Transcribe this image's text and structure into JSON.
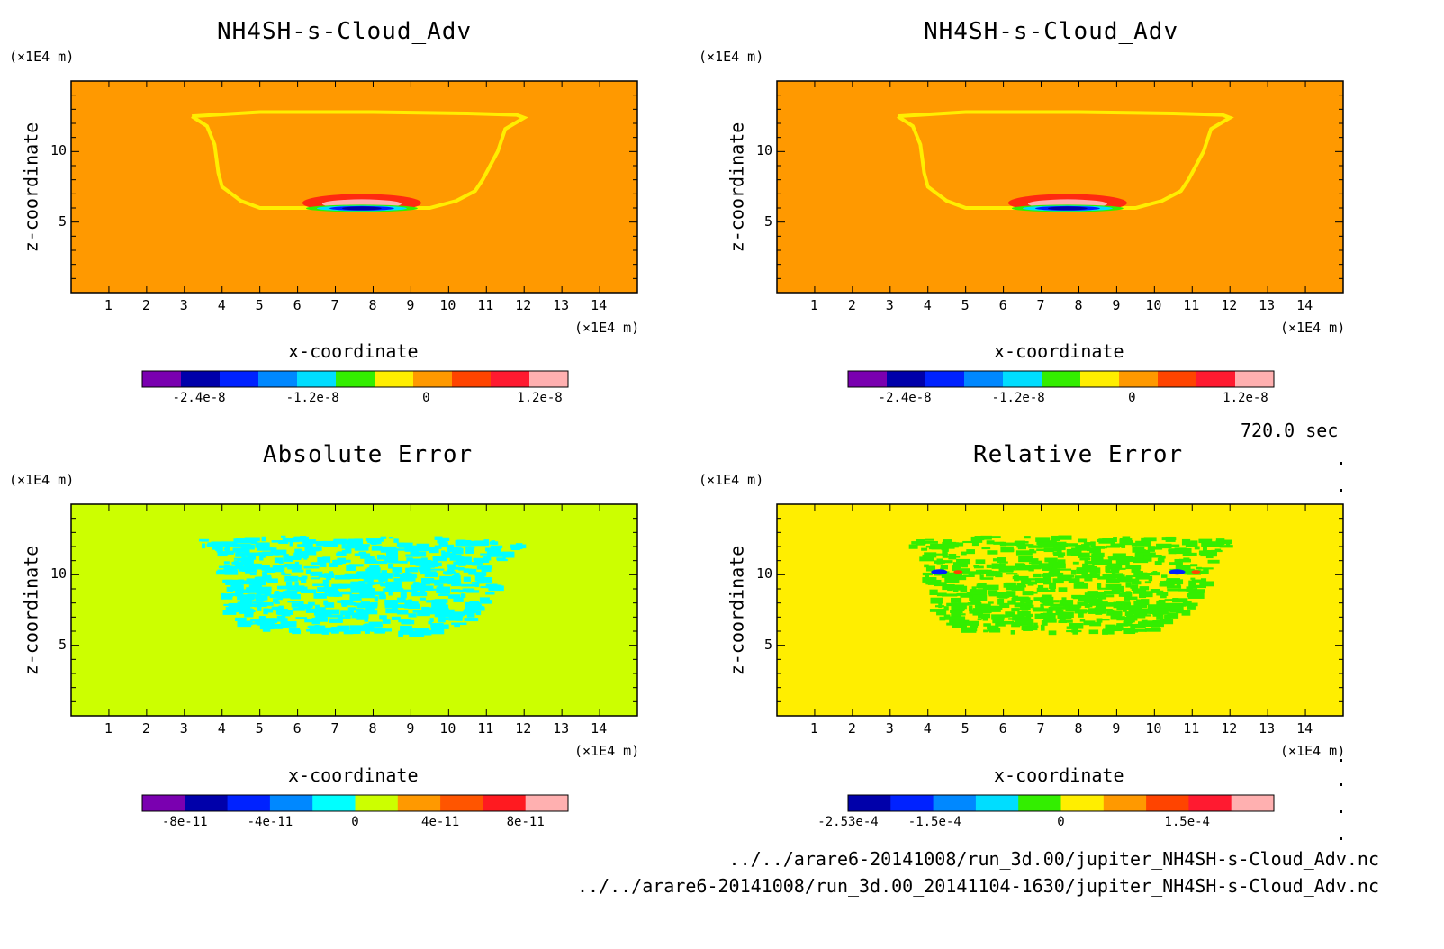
{
  "time_label": "720.0 sec",
  "file_paths": [
    "../../arare6-20141008/run_3d.00/jupiter_NH4SH-s-Cloud_Adv.nc",
    "../../arare6-20141008/run_3d.00_20141104-1630/jupiter_NH4SH-s-Cloud_Adv.nc"
  ],
  "chart_data": [
    {
      "type": "heatmap",
      "title": "NH4SH-s-Cloud_Adv",
      "xlabel": "x-coordinate",
      "ylabel": "z-coordinate",
      "x_unit": "(×1E4 m)",
      "z_unit": "(×1E4 m)",
      "x_ticks": [
        "1",
        "2",
        "3",
        "4",
        "5",
        "6",
        "7",
        "8",
        "9",
        "10",
        "11",
        "12",
        "13",
        "14"
      ],
      "z_ticks": [
        "5",
        "10"
      ],
      "xlim": [
        0,
        15
      ],
      "zlim": [
        0,
        15
      ],
      "background_color": "#ff9900",
      "colorbar": {
        "colors": [
          "#7a00b0",
          "#0000aa",
          "#0022ff",
          "#0088ff",
          "#00ddff",
          "#33ee00",
          "#ffee00",
          "#ff9900",
          "#ff4400",
          "#ff1a30",
          "#ffb0b0"
        ],
        "tick_labels": [
          "-2.4e-8",
          "-1.2e-8",
          "0",
          "1.2e-8"
        ],
        "tick_values": [
          -2.4e-08,
          -1.2e-08,
          0,
          1.2e-08
        ],
        "range": [
          -3e-08,
          1.5e-08
        ]
      }
    },
    {
      "type": "heatmap",
      "title": "NH4SH-s-Cloud_Adv",
      "xlabel": "x-coordinate",
      "ylabel": "z-coordinate",
      "x_unit": "(×1E4 m)",
      "z_unit": "(×1E4 m)",
      "x_ticks": [
        "1",
        "2",
        "3",
        "4",
        "5",
        "6",
        "7",
        "8",
        "9",
        "10",
        "11",
        "12",
        "13",
        "14"
      ],
      "z_ticks": [
        "5",
        "10"
      ],
      "xlim": [
        0,
        15
      ],
      "zlim": [
        0,
        15
      ],
      "background_color": "#ff9900",
      "colorbar": {
        "colors": [
          "#7a00b0",
          "#0000aa",
          "#0022ff",
          "#0088ff",
          "#00ddff",
          "#33ee00",
          "#ffee00",
          "#ff9900",
          "#ff4400",
          "#ff1a30",
          "#ffb0b0"
        ],
        "tick_labels": [
          "-2.4e-8",
          "-1.2e-8",
          "0",
          "1.2e-8"
        ],
        "tick_values": [
          -2.4e-08,
          -1.2e-08,
          0,
          1.2e-08
        ],
        "range": [
          -3e-08,
          1.5e-08
        ]
      }
    },
    {
      "type": "heatmap",
      "title": "Absolute Error",
      "xlabel": "x-coordinate",
      "ylabel": "z-coordinate",
      "x_unit": "(×1E4 m)",
      "z_unit": "(×1E4 m)",
      "x_ticks": [
        "1",
        "2",
        "3",
        "4",
        "5",
        "6",
        "7",
        "8",
        "9",
        "10",
        "11",
        "12",
        "13",
        "14"
      ],
      "z_ticks": [
        "5",
        "10"
      ],
      "xlim": [
        0,
        15
      ],
      "zlim": [
        0,
        15
      ],
      "background_color": "#ccff00",
      "colorbar": {
        "colors": [
          "#7a00b0",
          "#0000aa",
          "#0022ff",
          "#0088ff",
          "#00ffff",
          "#ccff00",
          "#ff9900",
          "#ff5500",
          "#ff1a20",
          "#ffb0b0"
        ],
        "tick_labels": [
          "-8e-11",
          "-4e-11",
          "0",
          "4e-11",
          "8e-11"
        ],
        "tick_values": [
          -8e-11,
          -4e-11,
          0,
          4e-11,
          8e-11
        ],
        "range": [
          -1e-10,
          1e-10
        ]
      }
    },
    {
      "type": "heatmap",
      "title": "Relative Error",
      "xlabel": "x-coordinate",
      "ylabel": "z-coordinate",
      "x_unit": "(×1E4 m)",
      "z_unit": "(×1E4 m)",
      "x_ticks": [
        "1",
        "2",
        "3",
        "4",
        "5",
        "6",
        "7",
        "8",
        "9",
        "10",
        "11",
        "12",
        "13",
        "14"
      ],
      "z_ticks": [
        "5",
        "10"
      ],
      "xlim": [
        0,
        15
      ],
      "zlim": [
        0,
        15
      ],
      "background_color": "#ffee00",
      "colorbar": {
        "colors": [
          "#0000aa",
          "#0022ff",
          "#0088ff",
          "#00ddff",
          "#33ee00",
          "#ffee00",
          "#ff9900",
          "#ff4400",
          "#ff1a30",
          "#ffb0b0"
        ],
        "tick_labels": [
          "-2.53e-4",
          "-1.5e-4",
          "0",
          "1.5e-4"
        ],
        "tick_values": [
          -0.000253,
          -0.00015,
          0,
          0.00015
        ],
        "range": [
          -0.000253,
          0.000253
        ]
      }
    }
  ]
}
